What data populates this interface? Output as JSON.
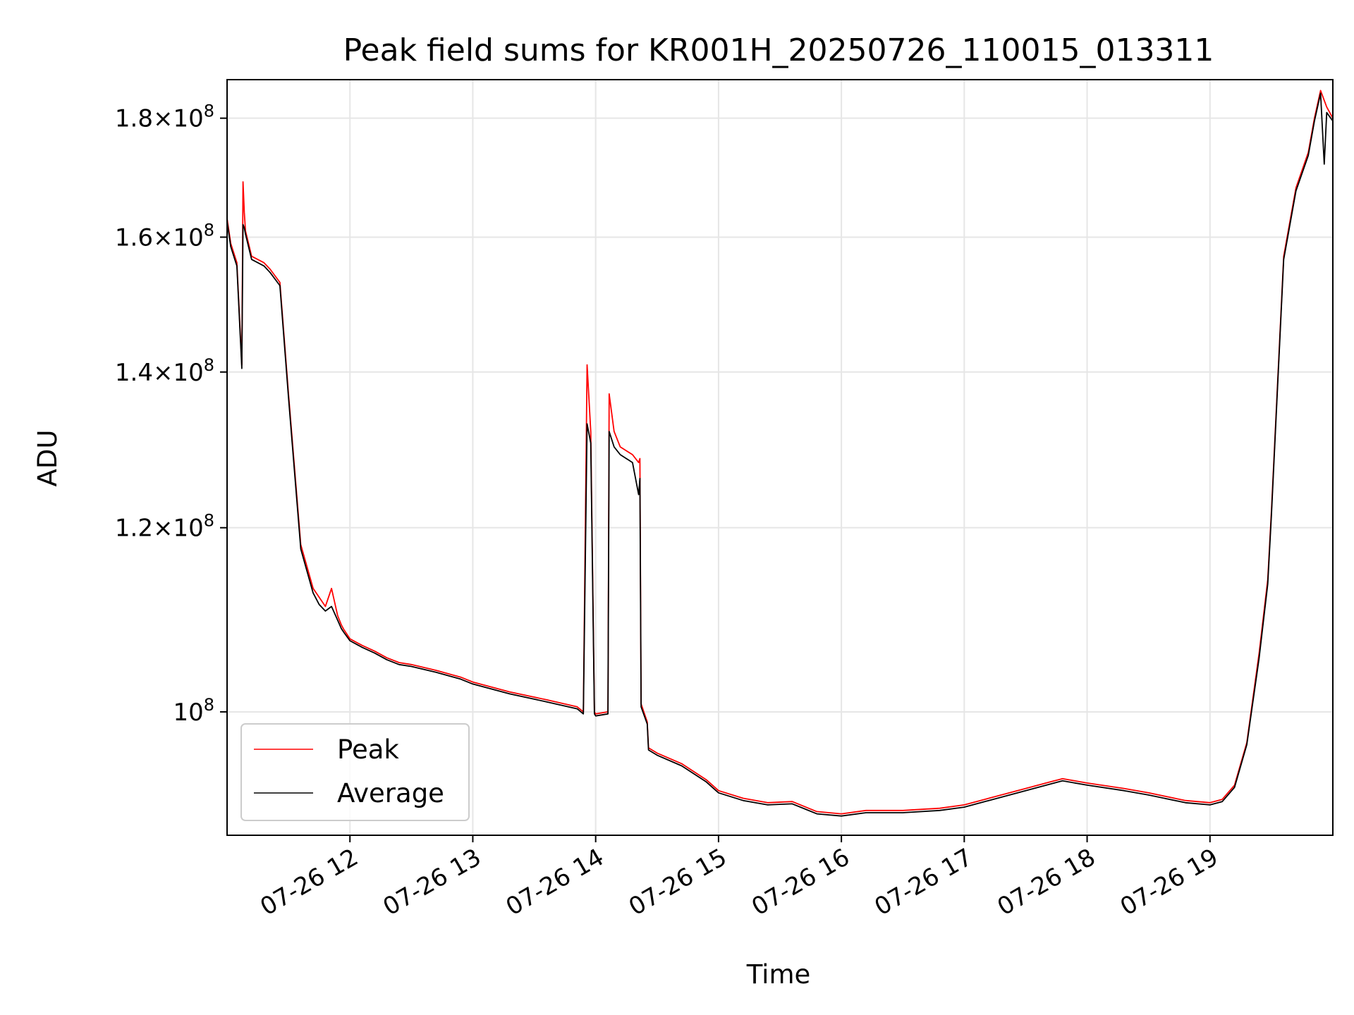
{
  "chart_data": {
    "type": "line",
    "title": "Peak field sums for KR001H_20250726_110015_013311",
    "xlabel": "Time",
    "ylabel": "ADU",
    "x_unit": "hour of day",
    "xlim": [
      11.0,
      20.0
    ],
    "ylim": [
      88500000,
      187000000
    ],
    "yscale": "log",
    "grid": true,
    "legend_position": "lower-left",
    "x_ticks": [
      {
        "value": 12,
        "label": "07-26 12"
      },
      {
        "value": 13,
        "label": "07-26 13"
      },
      {
        "value": 14,
        "label": "07-26 14"
      },
      {
        "value": 15,
        "label": "07-26 15"
      },
      {
        "value": 16,
        "label": "07-26 16"
      },
      {
        "value": 17,
        "label": "07-26 17"
      },
      {
        "value": 18,
        "label": "07-26 18"
      },
      {
        "value": 19,
        "label": "07-26 19"
      }
    ],
    "y_ticks": [
      {
        "value": 100000000,
        "mantissa": "",
        "exponent": "8"
      },
      {
        "value": 120000000,
        "mantissa": "1.2",
        "exponent": "8"
      },
      {
        "value": 140000000,
        "mantissa": "1.4",
        "exponent": "8"
      },
      {
        "value": 160000000,
        "mantissa": "1.6",
        "exponent": "8"
      },
      {
        "value": 180000000,
        "mantissa": "1.8",
        "exponent": "8"
      }
    ],
    "series": [
      {
        "name": "Peak",
        "color": "#ff0000",
        "x": [
          11.0,
          11.03,
          11.08,
          11.12,
          11.13,
          11.14,
          11.15,
          11.2,
          11.3,
          11.35,
          11.43,
          11.5,
          11.6,
          11.7,
          11.75,
          11.8,
          11.85,
          11.9,
          11.93,
          11.95,
          12.0,
          12.1,
          12.2,
          12.3,
          12.4,
          12.5,
          12.7,
          12.9,
          13.0,
          13.3,
          13.6,
          13.85,
          13.9,
          13.93,
          13.96,
          13.99,
          14.0,
          14.1,
          14.11,
          14.15,
          14.2,
          14.3,
          14.35,
          14.36,
          14.37,
          14.42,
          14.43,
          14.5,
          14.7,
          14.9,
          15.0,
          15.2,
          15.4,
          15.6,
          15.8,
          16.0,
          16.2,
          16.5,
          16.8,
          17.0,
          17.2,
          17.5,
          17.7,
          17.8,
          18.0,
          18.3,
          18.5,
          18.8,
          19.0,
          19.1,
          19.2,
          19.3,
          19.4,
          19.47,
          19.5,
          19.6,
          19.7,
          19.8,
          19.85,
          19.9,
          19.95,
          20.0
        ],
        "y": [
          163000000,
          159000000,
          156000000,
          141000000,
          169000000,
          164000000,
          161000000,
          157000000,
          156000000,
          155000000,
          153000000,
          137000000,
          118000000,
          113000000,
          112000000,
          111000000,
          113000000,
          110000000,
          109000000,
          108500000,
          107500000,
          106800000,
          106200000,
          105500000,
          105000000,
          104800000,
          104200000,
          103500000,
          103000000,
          102000000,
          101200000,
          100500000,
          100000000,
          141000000,
          132000000,
          100000000,
          99800000,
          100000000,
          137000000,
          132000000,
          130000000,
          129000000,
          128000000,
          128500000,
          100800000,
          99000000,
          96500000,
          96000000,
          95000000,
          93500000,
          92500000,
          91800000,
          91400000,
          91500000,
          90600000,
          90400000,
          90700000,
          90700000,
          90900000,
          91200000,
          91800000,
          92700000,
          93300000,
          93600000,
          93200000,
          92700000,
          92300000,
          91600000,
          91400000,
          91700000,
          93000000,
          97000000,
          106000000,
          114000000,
          122000000,
          157000000,
          168000000,
          174000000,
          180000000,
          185000000,
          182000000,
          180000000
        ]
      },
      {
        "name": "Average",
        "color": "#000000",
        "x": [
          11.0,
          11.03,
          11.08,
          11.12,
          11.13,
          11.14,
          11.15,
          11.2,
          11.3,
          11.35,
          11.43,
          11.5,
          11.6,
          11.7,
          11.75,
          11.8,
          11.85,
          11.9,
          11.93,
          11.95,
          12.0,
          12.1,
          12.2,
          12.3,
          12.4,
          12.5,
          12.7,
          12.9,
          13.0,
          13.3,
          13.6,
          13.85,
          13.9,
          13.93,
          13.96,
          13.99,
          14.0,
          14.1,
          14.11,
          14.15,
          14.2,
          14.3,
          14.35,
          14.36,
          14.37,
          14.42,
          14.43,
          14.5,
          14.7,
          14.9,
          15.0,
          15.2,
          15.4,
          15.6,
          15.8,
          16.0,
          16.2,
          16.5,
          16.8,
          17.0,
          17.2,
          17.5,
          17.7,
          17.8,
          18.0,
          18.3,
          18.5,
          18.8,
          19.0,
          19.1,
          19.2,
          19.3,
          19.4,
          19.47,
          19.5,
          19.6,
          19.7,
          19.8,
          19.85,
          19.9,
          19.93,
          19.95,
          20.0
        ],
        "y": [
          162500000,
          158500000,
          155500000,
          140500000,
          162000000,
          161500000,
          160500000,
          156500000,
          155500000,
          154500000,
          152500000,
          136500000,
          117500000,
          112500000,
          111200000,
          110500000,
          111000000,
          109500000,
          108600000,
          108200000,
          107300000,
          106600000,
          106000000,
          105300000,
          104800000,
          104600000,
          104000000,
          103300000,
          102800000,
          101800000,
          101000000,
          100300000,
          99800000,
          133000000,
          130500000,
          99800000,
          99600000,
          99800000,
          132000000,
          130000000,
          129000000,
          128000000,
          124000000,
          126000000,
          100500000,
          98800000,
          96300000,
          95800000,
          94800000,
          93300000,
          92300000,
          91600000,
          91200000,
          91300000,
          90400000,
          90200000,
          90500000,
          90500000,
          90700000,
          91000000,
          91600000,
          92500000,
          93100000,
          93400000,
          93000000,
          92500000,
          92100000,
          91400000,
          91200000,
          91500000,
          92800000,
          96800000,
          105500000,
          113500000,
          121500000,
          156500000,
          167500000,
          173500000,
          179500000,
          184500000,
          172000000,
          181000000,
          179500000
        ]
      }
    ]
  }
}
